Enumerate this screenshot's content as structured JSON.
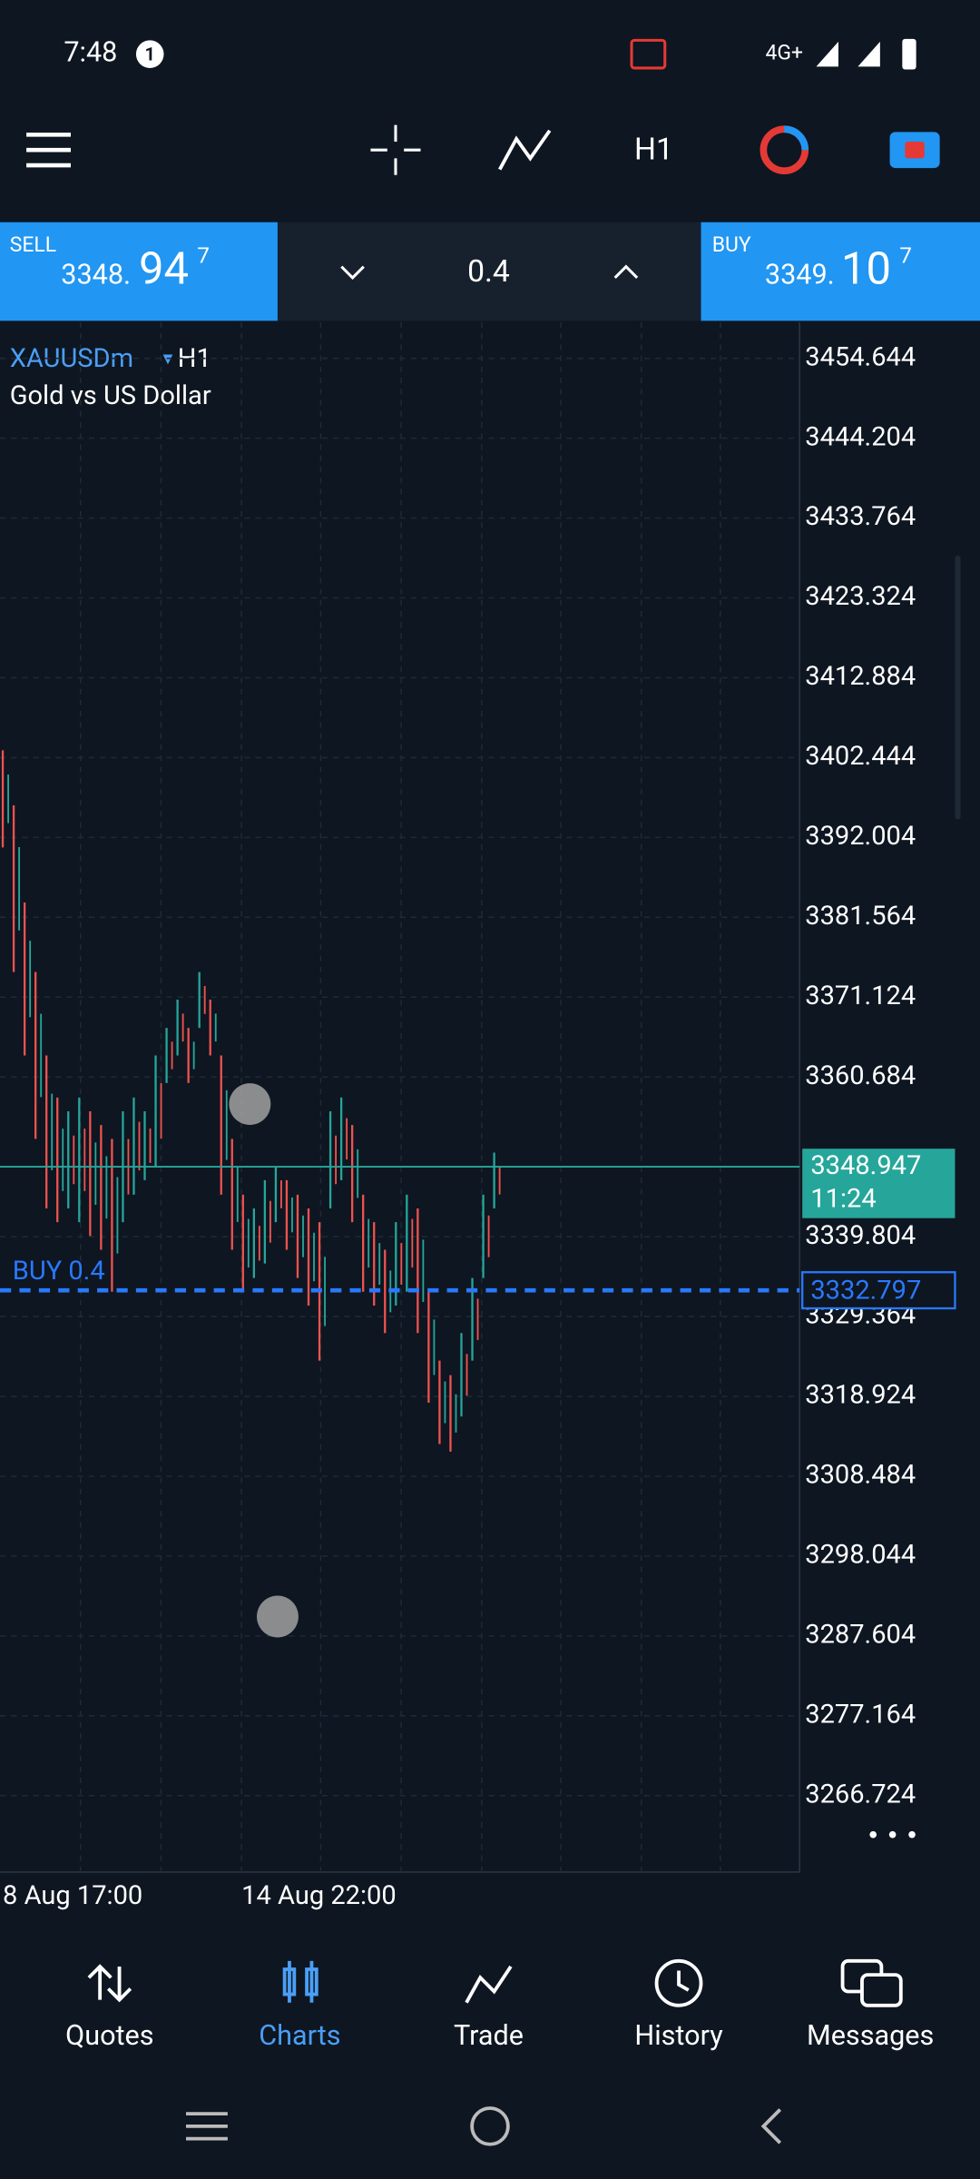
{
  "status_bar": {
    "time": "7:48",
    "notification_count": "1",
    "network": "4G+"
  },
  "toolbar": {
    "timeframe": "H1"
  },
  "trade_panel": {
    "sell": {
      "label": "SELL",
      "price_main": "3348.",
      "price_big": "94",
      "price_sup": "7"
    },
    "volume": "0.4",
    "buy": {
      "label": "BUY",
      "price_main": "3349.",
      "price_big": "10",
      "price_sup": "7"
    }
  },
  "chart": {
    "symbol": "XAUUSDm",
    "timeframe": "H1",
    "description": "Gold vs US Dollar",
    "ylim": [
      3256.73,
      3459.37
    ],
    "yticks": [
      3454.644,
      3444.204,
      3433.764,
      3423.324,
      3412.884,
      3402.444,
      3392.004,
      3381.564,
      3371.124,
      3360.684,
      3339.804,
      3329.364,
      3318.924,
      3308.484,
      3298.044,
      3287.604,
      3277.164,
      3266.724
    ],
    "candles": [
      {
        "low": 3390.7,
        "high": 3403.4
      },
      {
        "low": 3374.4,
        "high": 3396.2
      },
      {
        "low": 3363.5,
        "high": 3383.5
      },
      {
        "low": 3352.6,
        "high": 3374.4
      },
      {
        "low": 3343.5,
        "high": 3363.5
      },
      {
        "low": 3341.7,
        "high": 3358.0
      },
      {
        "low": 3343.5,
        "high": 3356.2
      },
      {
        "low": 3341.7,
        "high": 3358.0
      },
      {
        "low": 3339.9,
        "high": 3356.2
      },
      {
        "low": 3338.1,
        "high": 3354.4
      },
      {
        "low": 3332.6,
        "high": 3352.6
      },
      {
        "low": 3341.7,
        "high": 3356.2
      },
      {
        "low": 3345.3,
        "high": 3358.0
      },
      {
        "low": 3347.2,
        "high": 3356.2
      },
      {
        "low": 3349.0,
        "high": 3363.5
      },
      {
        "low": 3359.9,
        "high": 3367.1
      },
      {
        "low": 3363.5,
        "high": 3370.8
      },
      {
        "low": 3359.9,
        "high": 3367.1
      },
      {
        "low": 3367.1,
        "high": 3374.4
      },
      {
        "low": 3363.5,
        "high": 3370.8
      },
      {
        "low": 3345.3,
        "high": 3363.5
      },
      {
        "low": 3338.1,
        "high": 3352.6
      },
      {
        "low": 3332.6,
        "high": 3345.3
      },
      {
        "low": 3334.4,
        "high": 3343.5
      },
      {
        "low": 3336.3,
        "high": 3347.2
      },
      {
        "low": 3341.7,
        "high": 3349.0
      },
      {
        "low": 3338.1,
        "high": 3347.2
      },
      {
        "low": 3334.4,
        "high": 3345.3
      },
      {
        "low": 3330.8,
        "high": 3343.5
      },
      {
        "low": 3323.6,
        "high": 3341.7
      },
      {
        "low": 3343.5,
        "high": 3356.2
      },
      {
        "low": 3347.2,
        "high": 3358.0
      },
      {
        "low": 3341.7,
        "high": 3354.4
      },
      {
        "low": 3332.6,
        "high": 3345.3
      },
      {
        "low": 3330.8,
        "high": 3341.7
      },
      {
        "low": 3327.2,
        "high": 3338.1
      },
      {
        "low": 3330.8,
        "high": 3341.7
      },
      {
        "low": 3332.6,
        "high": 3345.3
      },
      {
        "low": 3327.2,
        "high": 3343.5
      },
      {
        "low": 3318.1,
        "high": 3332.6
      },
      {
        "low": 3312.7,
        "high": 3323.6
      },
      {
        "low": 3311.7,
        "high": 3321.7
      },
      {
        "low": 3316.3,
        "high": 3327.2
      },
      {
        "low": 3323.6,
        "high": 3334.4
      },
      {
        "low": 3334.4,
        "high": 3345.3
      },
      {
        "low": 3343.5,
        "high": 3350.8
      }
    ],
    "current_price": {
      "value": 3348.947,
      "time": "11:24"
    },
    "position": {
      "label": "BUY 0.4",
      "price": 3332.797
    },
    "x_labels": [
      "8 Aug 17:00",
      "14 Aug 22:00"
    ]
  },
  "nav": {
    "items": [
      "Quotes",
      "Charts",
      "Trade",
      "History",
      "Messages"
    ]
  }
}
